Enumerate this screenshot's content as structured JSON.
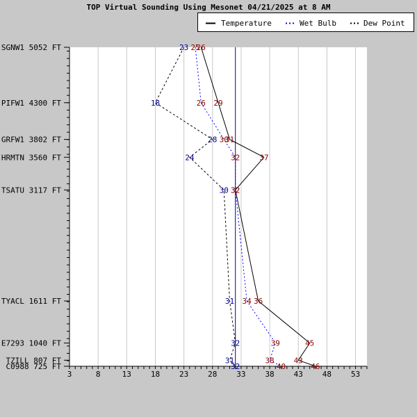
{
  "title": "TOP Virtual Sounding Using Mesonet 04/21/2025 at 8 AM",
  "legend": {
    "temperature": "Temperature",
    "wet_bulb": "Wet Bulb",
    "dew_point": "Dew Point"
  },
  "colors": {
    "background": "#c8c8c8",
    "plot_area": "#ffffff",
    "temperature_line": "#000000",
    "wet_bulb_line": "#0000ff",
    "dew_point_line": "#000000",
    "temperature_labels": "#8b0000",
    "wet_bulb_labels": "#8b0000",
    "dew_point_labels": "#00008b",
    "freezing_line": "#00008b",
    "grid": "#c8c8c8"
  },
  "chart_data": {
    "type": "line",
    "title": "TOP Virtual Sounding Using Mesonet 04/21/2025 at 8 AM",
    "xlabel": "",
    "ylabel": "",
    "xlim": [
      3,
      55
    ],
    "ylim": [
      725,
      5052
    ],
    "x_ticks": [
      "3",
      "8",
      "13",
      "18",
      "23",
      "28",
      "33",
      "38",
      "43",
      "48",
      "53"
    ],
    "freezing_line_x": 32,
    "grid": true,
    "legend_position": "top-right",
    "levels": [
      {
        "label": "SGNW1 5052 FT",
        "elevation": 5052
      },
      {
        "label": "PIFW1 4300 FT",
        "elevation": 4300
      },
      {
        "label": "GRFW1 3802 FT",
        "elevation": 3802
      },
      {
        "label": "HRMTN 3560 FT",
        "elevation": 3560
      },
      {
        "label": "TSATU 3117 FT",
        "elevation": 3117
      },
      {
        "label": "TYACL 1611 FT",
        "elevation": 1611
      },
      {
        "label": "E7293 1040 FT",
        "elevation": 1040
      },
      {
        "label": "TZILL 807 FT",
        "elevation": 807
      },
      {
        "label": "C0988 725 FT",
        "elevation": 725
      }
    ],
    "series": [
      {
        "name": "Temperature",
        "values": [
          26,
          29,
          31,
          37,
          32,
          36,
          45,
          43,
          46
        ]
      },
      {
        "name": "Wet Bulb",
        "values": [
          25,
          26,
          30,
          32,
          32,
          34,
          39,
          38,
          40
        ]
      },
      {
        "name": "Dew Point",
        "values": [
          23,
          18,
          28,
          24,
          30,
          31,
          32,
          31,
          32
        ]
      }
    ]
  }
}
